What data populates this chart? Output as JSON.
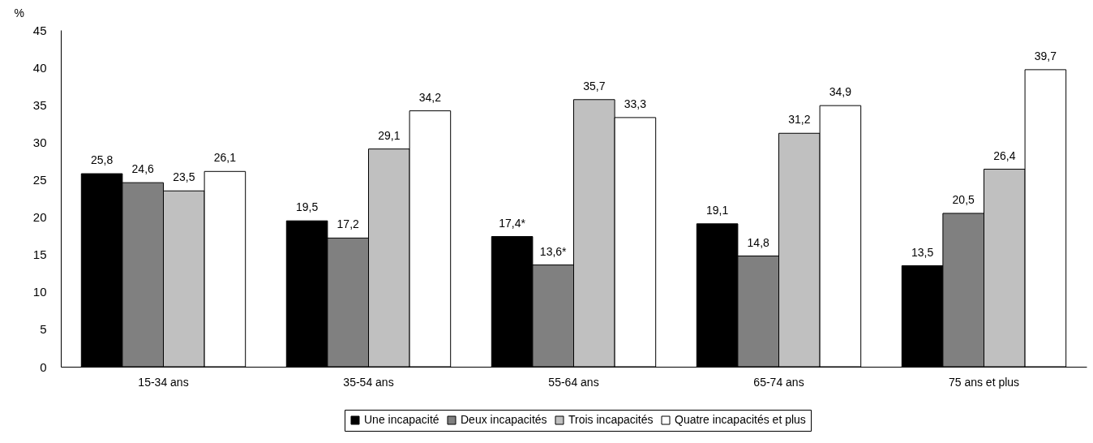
{
  "chart_data": {
    "type": "bar",
    "ylabel": "%",
    "categories": [
      "15-34 ans",
      "35-54 ans",
      "55-64 ans",
      "65-74 ans",
      "75 ans et plus"
    ],
    "series": [
      {
        "name": "Une incapacité",
        "color": "#000000",
        "values": [
          25.8,
          19.5,
          17.4,
          19.1,
          13.5
        ],
        "value_labels": [
          "25,8",
          "19,5",
          "17,4*",
          "19,1",
          "13,5"
        ]
      },
      {
        "name": "Deux incapacités",
        "color": "#808080",
        "values": [
          24.6,
          17.2,
          13.6,
          14.8,
          20.5
        ],
        "value_labels": [
          "24,6",
          "17,2",
          "13,6*",
          "14,8",
          "20,5"
        ]
      },
      {
        "name": "Trois incapacités",
        "color": "#c0c0c0",
        "values": [
          23.5,
          29.1,
          35.7,
          31.2,
          26.4
        ],
        "value_labels": [
          "23,5",
          "29,1",
          "35,7",
          "31,2",
          "26,4"
        ]
      },
      {
        "name": "Quatre incapacités et plus",
        "color": "#ffffff",
        "values": [
          26.1,
          34.2,
          33.3,
          34.9,
          39.7
        ],
        "value_labels": [
          "26,1",
          "34,2",
          "33,3",
          "34,9",
          "39,7"
        ]
      }
    ],
    "ylim": [
      0,
      45
    ],
    "yticks": [
      0,
      5,
      10,
      15,
      20,
      25,
      30,
      35,
      40,
      45
    ],
    "grid": false,
    "legend": "bottom"
  }
}
